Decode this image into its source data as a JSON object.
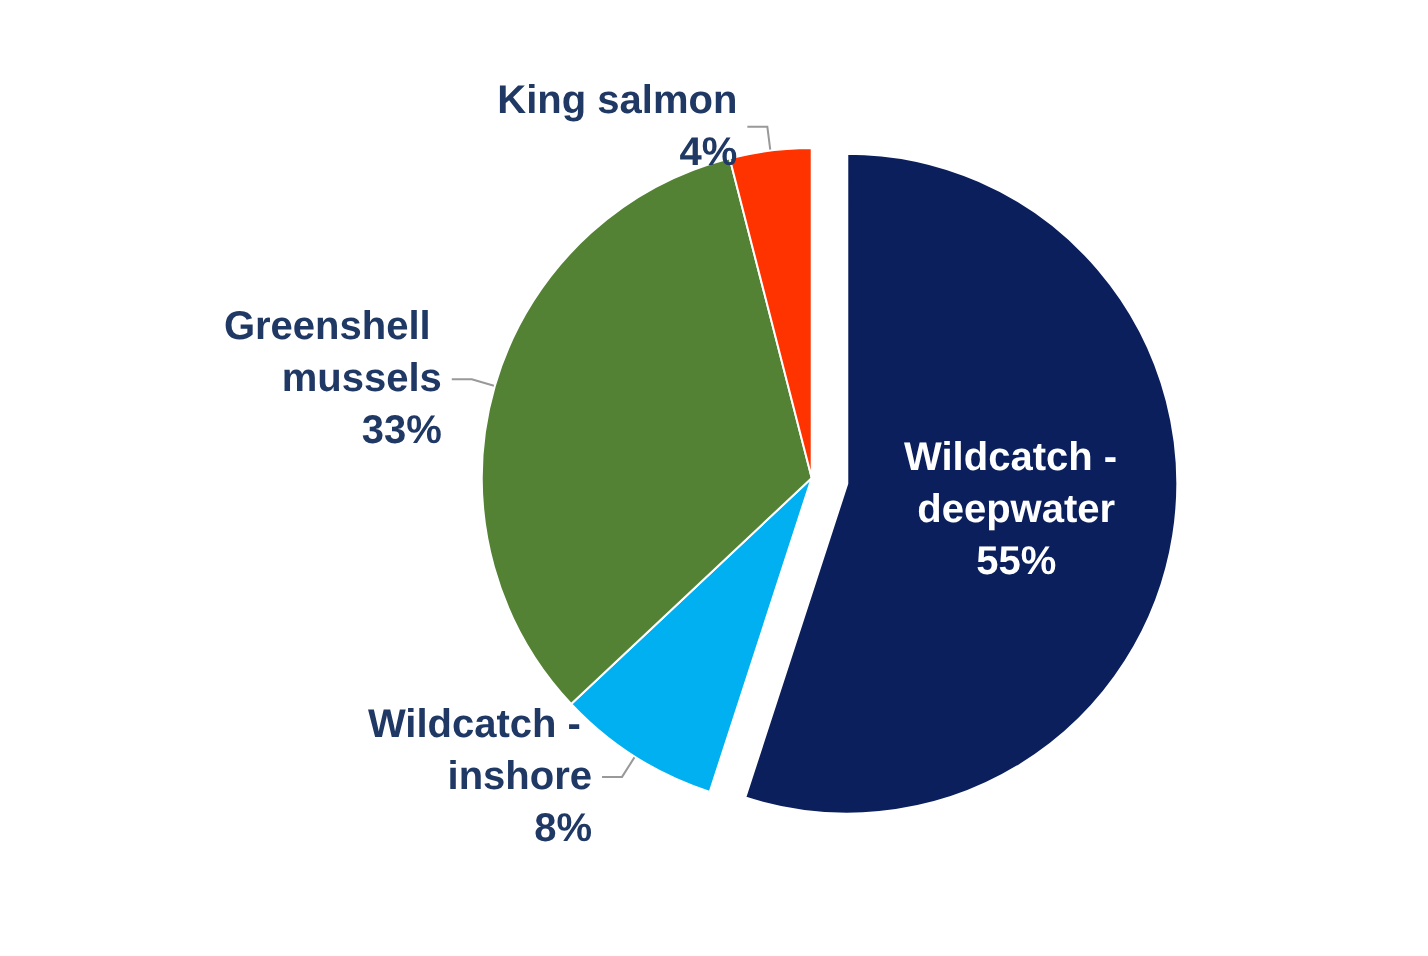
{
  "chart_data": {
    "type": "pie",
    "categories": [
      "Wildcatch - deepwater",
      "Wildcatch - inshore",
      "Greenshell mussels",
      "King salmon"
    ],
    "values": [
      55,
      8,
      33,
      4
    ],
    "value_labels": [
      "55%",
      "8%",
      "33%",
      "4%"
    ],
    "colors": [
      "#0b1f5c",
      "#00b0f0",
      "#548235",
      "#ff3300"
    ]
  }
}
